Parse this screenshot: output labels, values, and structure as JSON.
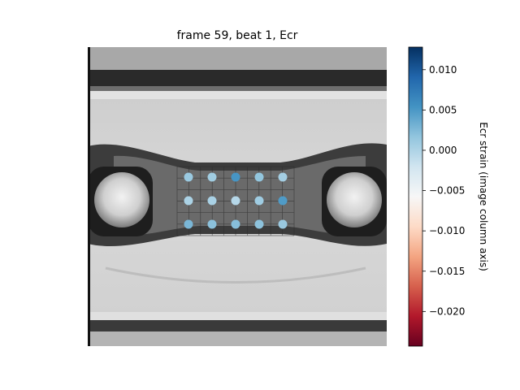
{
  "chart_data": {
    "type": "scatter",
    "title": "frame 59, beat 1, Ecr",
    "xlabel": "",
    "ylabel": "",
    "grid": false,
    "background": "grayscale microscopy image of tissue between two posts",
    "markers": {
      "rows": 3,
      "cols": 5,
      "values": [
        [
          0.0012,
          0.0008,
          0.0052,
          0.0016,
          0.0006
        ],
        [
          0.0002,
          0.0003,
          -0.0004,
          0.0009,
          0.0048
        ],
        [
          0.0028,
          0.002,
          0.0022,
          0.0019,
          0.0012
        ]
      ]
    },
    "colorbar": {
      "label": "Ecr strain (image column axis)",
      "colormap": "RdBu",
      "vmin": -0.0243,
      "vmax": 0.0128,
      "ticks": [
        0.01,
        0.005,
        0.0,
        -0.005,
        -0.01,
        -0.015,
        -0.02
      ],
      "tick_labels": [
        "0.010",
        "0.005",
        "0.000",
        "−0.005",
        "−0.010",
        "−0.015",
        "−0.020"
      ]
    }
  }
}
